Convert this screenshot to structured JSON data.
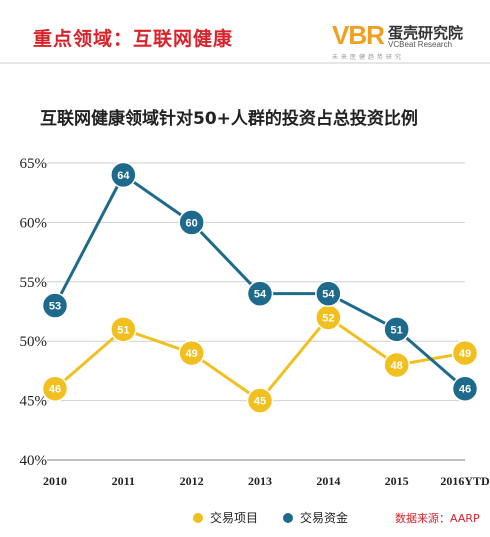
{
  "header": {
    "title": "重点领域：互联网健康",
    "logo_mark": "VBR",
    "logo_name": "蛋壳研究院",
    "logo_sub": "VCBeat Research",
    "logo_tag": "未来医健趋势研究"
  },
  "colors": {
    "yellow": "#f2c01e",
    "blue": "#1d6a8c",
    "grid": "#cfcfcf",
    "source": "#d8232a"
  },
  "source": "数据来源：AARP",
  "chart_data": {
    "type": "line",
    "title": "互联网健康领域针对50+人群的投资占总投资比例",
    "categories": [
      "2010",
      "2011",
      "2012",
      "2013",
      "2014",
      "2015",
      "2016YTD"
    ],
    "ylim": [
      40,
      65
    ],
    "yticks": [
      40,
      45,
      50,
      55,
      60,
      65
    ],
    "ytick_format": "%",
    "grid": "horizontal",
    "legend_position": "bottom",
    "series": [
      {
        "name": "交易项目",
        "color": "#f2c01e",
        "values": [
          46,
          51,
          49,
          45,
          52,
          48,
          49
        ]
      },
      {
        "name": "交易资金",
        "color": "#1d6a8c",
        "values": [
          53,
          64,
          60,
          54,
          54,
          51,
          46
        ]
      }
    ]
  }
}
